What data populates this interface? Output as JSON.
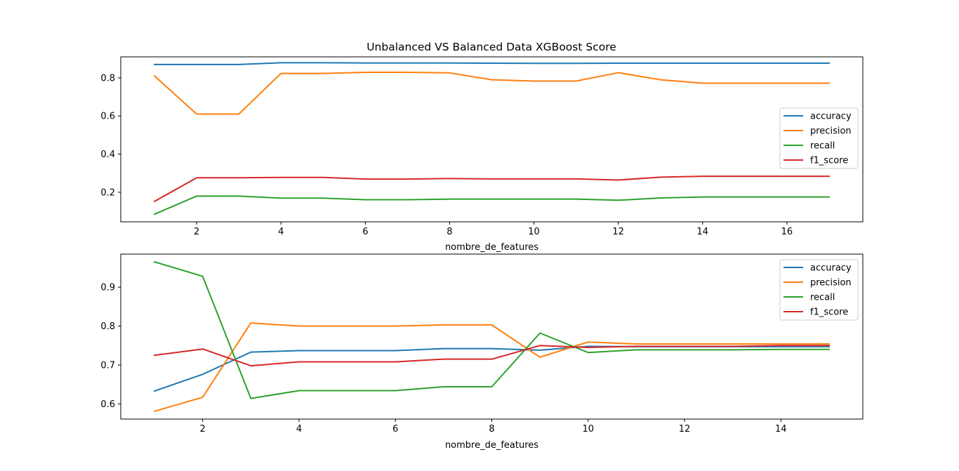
{
  "figure": {
    "title": "Unbalanced VS Balanced Data XGBoost Score"
  },
  "chart_data": [
    {
      "type": "line",
      "title": "Unbalanced VS Balanced Data XGBoost Score",
      "xlabel": "nombre_de_features",
      "ylabel": "",
      "xlim": [
        0.2,
        17.8
      ],
      "ylim": [
        0.045,
        0.91
      ],
      "xticks": [
        2,
        4,
        6,
        8,
        10,
        12,
        14,
        16
      ],
      "yticks": [
        0.2,
        0.4,
        0.6,
        0.8
      ],
      "grid": false,
      "legend_position": "center right",
      "x": [
        1,
        2,
        3,
        4,
        5,
        6,
        7,
        8,
        9,
        10,
        11,
        12,
        13,
        14,
        15,
        16,
        17
      ],
      "series": [
        {
          "name": "accuracy",
          "color": "#1f77b4",
          "values": [
            0.87,
            0.87,
            0.87,
            0.879,
            0.879,
            0.878,
            0.878,
            0.878,
            0.877,
            0.876,
            0.876,
            0.877,
            0.877,
            0.877,
            0.877,
            0.877,
            0.877
          ]
        },
        {
          "name": "precision",
          "color": "#ff7f0e",
          "values": [
            0.81,
            0.61,
            0.61,
            0.823,
            0.823,
            0.829,
            0.829,
            0.826,
            0.79,
            0.783,
            0.783,
            0.827,
            0.79,
            0.772,
            0.772,
            0.772,
            0.772
          ]
        },
        {
          "name": "recall",
          "color": "#2ca02c",
          "values": [
            0.085,
            0.18,
            0.18,
            0.169,
            0.169,
            0.161,
            0.161,
            0.164,
            0.164,
            0.164,
            0.164,
            0.158,
            0.17,
            0.175,
            0.175,
            0.175,
            0.175
          ]
        },
        {
          "name": "f1_score",
          "color": "#d62728",
          "values": [
            0.152,
            0.276,
            0.276,
            0.278,
            0.278,
            0.269,
            0.269,
            0.272,
            0.27,
            0.27,
            0.27,
            0.264,
            0.279,
            0.284,
            0.284,
            0.284,
            0.284
          ]
        }
      ]
    },
    {
      "type": "line",
      "title": "",
      "xlabel": "nombre_de_features",
      "ylabel": "",
      "xlim": [
        0.3,
        15.7
      ],
      "ylim": [
        0.561,
        0.985
      ],
      "xticks": [
        2,
        4,
        6,
        8,
        10,
        12,
        14
      ],
      "yticks": [
        0.6,
        0.7,
        0.8,
        0.9
      ],
      "grid": false,
      "legend_position": "upper right",
      "x": [
        1,
        2,
        3,
        4,
        5,
        6,
        7,
        8,
        9,
        10,
        11,
        12,
        13,
        14,
        15
      ],
      "series": [
        {
          "name": "accuracy",
          "color": "#1f77b4",
          "values": [
            0.633,
            0.676,
            0.733,
            0.737,
            0.737,
            0.737,
            0.742,
            0.742,
            0.738,
            0.748,
            0.747,
            0.747,
            0.747,
            0.747,
            0.747
          ]
        },
        {
          "name": "precision",
          "color": "#ff7f0e",
          "values": [
            0.581,
            0.617,
            0.808,
            0.8,
            0.8,
            0.8,
            0.803,
            0.803,
            0.72,
            0.759,
            0.754,
            0.754,
            0.754,
            0.754,
            0.754
          ]
        },
        {
          "name": "recall",
          "color": "#2ca02c",
          "values": [
            0.965,
            0.928,
            0.614,
            0.634,
            0.634,
            0.634,
            0.644,
            0.644,
            0.782,
            0.732,
            0.739,
            0.739,
            0.739,
            0.74,
            0.74
          ]
        },
        {
          "name": "f1_score",
          "color": "#d62728",
          "values": [
            0.725,
            0.741,
            0.698,
            0.708,
            0.708,
            0.708,
            0.715,
            0.715,
            0.75,
            0.745,
            0.748,
            0.748,
            0.748,
            0.75,
            0.75
          ]
        }
      ]
    }
  ]
}
